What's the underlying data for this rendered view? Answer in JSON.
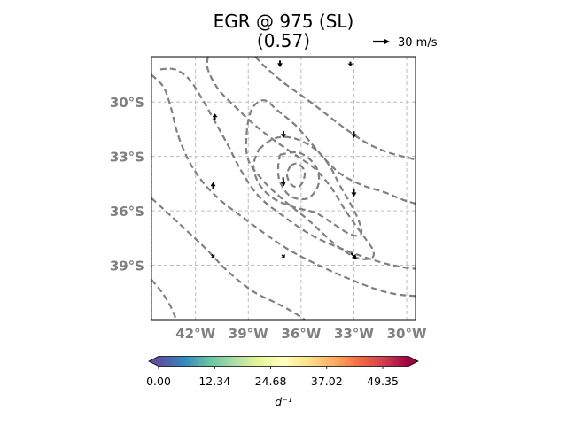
{
  "chart_data": {
    "type": "map-contour-vector",
    "title_line1": "EGR @ 975 (SL)",
    "title_line2": "(0.57)",
    "quiver_key": {
      "label": "30 m/s",
      "value": 30,
      "units": "m/s"
    },
    "lon_range": [
      -44.5,
      -29.5
    ],
    "lat_range": [
      -42,
      -27.5
    ],
    "lon_ticks": [
      -42,
      -39,
      -36,
      -33,
      -30
    ],
    "lon_tick_labels": [
      "42°W",
      "39°W",
      "36°W",
      "33°W",
      "30°W"
    ],
    "lat_ticks": [
      -30,
      -33,
      -36,
      -39
    ],
    "lat_tick_labels": [
      "30°S",
      "33°S",
      "36°S",
      "39°S"
    ],
    "grid": true,
    "colorbar": {
      "ticks": [
        0.0,
        12.34,
        24.68,
        37.02,
        49.35
      ],
      "tick_labels": [
        "0.00",
        "12.34",
        "24.68",
        "37.02",
        "49.35"
      ],
      "range": [
        0,
        55
      ],
      "label": "d⁻¹",
      "colormap": "Spectral_r",
      "extend": "both"
    },
    "contours": [
      {
        "points": [
          [
            -44.5,
            -28.5
          ],
          [
            -43.8,
            -29.2
          ],
          [
            -43.4,
            -30.3
          ],
          [
            -43.0,
            -31.8
          ],
          [
            -42.4,
            -33.2
          ],
          [
            -41.6,
            -34.4
          ],
          [
            -40.6,
            -35.4
          ],
          [
            -39.4,
            -36.3
          ],
          [
            -38.0,
            -37.3
          ],
          [
            -36.6,
            -38.2
          ],
          [
            -35.0,
            -39.0
          ],
          [
            -33.4,
            -39.7
          ],
          [
            -31.8,
            -40.3
          ],
          [
            -30.6,
            -40.6
          ],
          [
            -29.5,
            -40.7
          ]
        ]
      },
      {
        "points": [
          [
            -44.5,
            -35.3
          ],
          [
            -43.6,
            -36.1
          ],
          [
            -42.6,
            -37.0
          ],
          [
            -41.4,
            -38.1
          ],
          [
            -40.2,
            -39.3
          ],
          [
            -38.8,
            -40.4
          ],
          [
            -37.6,
            -41.0
          ],
          [
            -36.6,
            -41.5
          ],
          [
            -35.8,
            -42.0
          ]
        ]
      },
      {
        "points": [
          [
            -44.5,
            -39.8
          ],
          [
            -43.9,
            -40.5
          ],
          [
            -43.4,
            -41.3
          ],
          [
            -43.1,
            -42.0
          ]
        ]
      },
      {
        "points": [
          [
            -41.3,
            -27.5
          ],
          [
            -41.3,
            -28.2
          ],
          [
            -40.7,
            -29.3
          ],
          [
            -39.7,
            -30.3
          ],
          [
            -38.6,
            -31.3
          ],
          [
            -37.4,
            -32.2
          ],
          [
            -36.2,
            -33.0
          ],
          [
            -35.2,
            -33.7
          ],
          [
            -34.3,
            -34.7
          ],
          [
            -33.6,
            -35.8
          ],
          [
            -32.9,
            -36.8
          ],
          [
            -32.3,
            -37.6
          ],
          [
            -31.9,
            -38.2
          ],
          [
            -32.0,
            -38.6
          ],
          [
            -32.8,
            -38.6
          ],
          [
            -34.0,
            -37.9
          ],
          [
            -35.6,
            -36.5
          ],
          [
            -37.0,
            -35.4
          ],
          [
            -38.1,
            -34.4
          ],
          [
            -39.0,
            -33.2
          ],
          [
            -39.1,
            -31.8
          ],
          [
            -38.8,
            -30.4
          ],
          [
            -38.1,
            -29.9
          ],
          [
            -37.3,
            -30.5
          ],
          [
            -36.3,
            -31.3
          ],
          [
            -35.4,
            -32.3
          ],
          [
            -34.6,
            -33.2
          ],
          [
            -33.7,
            -34.0
          ],
          [
            -32.5,
            -34.6
          ],
          [
            -31.2,
            -35.0
          ],
          [
            -30.2,
            -35.4
          ],
          [
            -29.5,
            -35.6
          ]
        ]
      },
      {
        "points": [
          [
            -38.6,
            -27.5
          ],
          [
            -38.0,
            -28.1
          ],
          [
            -36.9,
            -29.0
          ],
          [
            -35.6,
            -29.9
          ],
          [
            -34.4,
            -30.8
          ],
          [
            -33.3,
            -31.6
          ],
          [
            -32.2,
            -32.3
          ],
          [
            -31.0,
            -32.8
          ],
          [
            -29.8,
            -33.1
          ],
          [
            -29.5,
            -33.2
          ]
        ]
      },
      {
        "points": [
          [
            -44.0,
            -28.2
          ],
          [
            -43.2,
            -28.2
          ],
          [
            -42.4,
            -28.7
          ],
          [
            -41.7,
            -29.7
          ],
          [
            -41.0,
            -30.9
          ],
          [
            -40.2,
            -32.3
          ],
          [
            -39.4,
            -33.8
          ],
          [
            -38.4,
            -35.2
          ],
          [
            -37.0,
            -36.3
          ],
          [
            -35.3,
            -37.4
          ],
          [
            -33.4,
            -38.2
          ],
          [
            -31.6,
            -38.8
          ],
          [
            -30.3,
            -39.1
          ],
          [
            -29.5,
            -39.2
          ]
        ]
      },
      {
        "points": [
          [
            -36.6,
            -33.5
          ],
          [
            -36.2,
            -33.4
          ],
          [
            -35.8,
            -33.8
          ],
          [
            -35.9,
            -34.4
          ],
          [
            -36.2,
            -34.7
          ],
          [
            -36.6,
            -34.5
          ],
          [
            -36.8,
            -34.0
          ],
          [
            -36.6,
            -33.5
          ]
        ]
      },
      {
        "points": [
          [
            -37.2,
            -32.9
          ],
          [
            -36.1,
            -32.8
          ],
          [
            -35.2,
            -33.5
          ],
          [
            -35.0,
            -34.5
          ],
          [
            -35.6,
            -35.3
          ],
          [
            -36.6,
            -35.2
          ],
          [
            -37.2,
            -34.4
          ],
          [
            -37.3,
            -33.6
          ],
          [
            -37.2,
            -32.9
          ]
        ]
      },
      {
        "points": [
          [
            -38.4,
            -32.6
          ],
          [
            -37.5,
            -32.0
          ],
          [
            -36.4,
            -32.0
          ],
          [
            -35.2,
            -32.6
          ],
          [
            -34.4,
            -33.5
          ],
          [
            -33.8,
            -34.6
          ],
          [
            -33.2,
            -35.6
          ],
          [
            -32.7,
            -36.6
          ],
          [
            -32.6,
            -37.3
          ],
          [
            -33.2,
            -37.3
          ],
          [
            -34.2,
            -36.7
          ],
          [
            -35.2,
            -36.1
          ],
          [
            -36.4,
            -35.8
          ],
          [
            -37.6,
            -35.3
          ],
          [
            -38.4,
            -34.5
          ],
          [
            -38.7,
            -33.5
          ],
          [
            -38.4,
            -32.6
          ]
        ]
      }
    ],
    "vectors": [
      {
        "lon": -37.2,
        "lat": -27.9,
        "u": 0,
        "v": -12
      },
      {
        "lon": -33.2,
        "lat": -27.9,
        "u": 0,
        "v": -8
      },
      {
        "lon": -40.9,
        "lat": -30.8,
        "u": 0,
        "v": 11
      },
      {
        "lon": -37.0,
        "lat": -31.8,
        "u": 0,
        "v": -13
      },
      {
        "lon": -33.0,
        "lat": -31.8,
        "u": 0,
        "v": -12
      },
      {
        "lon": -41.0,
        "lat": -34.6,
        "u": 0,
        "v": 12
      },
      {
        "lon": -37.0,
        "lat": -34.4,
        "u": 1.5,
        "v": -16
      },
      {
        "lon": -33.0,
        "lat": -35.0,
        "u": 0,
        "v": -15
      },
      {
        "lon": -41.0,
        "lat": -38.5,
        "u": 5,
        "v": -5
      },
      {
        "lon": -37.0,
        "lat": -38.5,
        "u": 5,
        "v": -5
      },
      {
        "lon": -33.0,
        "lat": -38.5,
        "u": 10,
        "v": -10
      }
    ]
  }
}
